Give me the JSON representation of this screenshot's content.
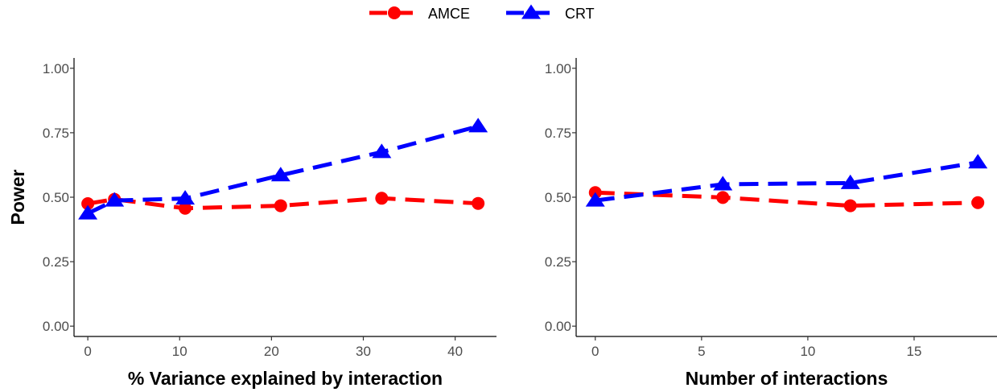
{
  "legend": {
    "items": [
      {
        "label": "AMCE",
        "color": "#ff0000",
        "marker": "circle"
      },
      {
        "label": "CRT",
        "color": "#0000ff",
        "marker": "triangle"
      }
    ]
  },
  "chart_data": [
    {
      "type": "line",
      "xlabel": "% Variance explained by interaction",
      "ylabel": "Power",
      "xlim": [
        -1.5,
        44.5
      ],
      "ylim": [
        -0.04,
        1.04
      ],
      "xticks": [
        0,
        10,
        20,
        30,
        40
      ],
      "yticks": [
        0.0,
        0.25,
        0.5,
        0.75,
        1.0
      ],
      "ytick_labels": [
        "0.00",
        "0.25",
        "0.50",
        "0.75",
        "1.00"
      ],
      "grid": false,
      "series": [
        {
          "name": "AMCE",
          "color": "#ff0000",
          "marker": "circle",
          "x": [
            0,
            2.9,
            10.6,
            21.0,
            32.0,
            42.5
          ],
          "y": [
            0.475,
            0.492,
            0.457,
            0.467,
            0.496,
            0.476
          ]
        },
        {
          "name": "CRT",
          "color": "#0000ff",
          "marker": "triangle",
          "x": [
            0,
            2.9,
            10.6,
            21.0,
            32.0,
            42.5
          ],
          "y": [
            0.437,
            0.487,
            0.495,
            0.585,
            0.675,
            0.775
          ]
        }
      ]
    },
    {
      "type": "line",
      "xlabel": "Number of interactions",
      "ylabel": "",
      "xlim": [
        -0.9,
        18.9
      ],
      "ylim": [
        -0.04,
        1.04
      ],
      "xticks": [
        0,
        5,
        10,
        15
      ],
      "yticks": [
        0.0,
        0.25,
        0.5,
        0.75,
        1.0
      ],
      "ytick_labels": [
        "0.00",
        "0.25",
        "0.50",
        "0.75",
        "1.00"
      ],
      "grid": false,
      "series": [
        {
          "name": "AMCE",
          "color": "#ff0000",
          "marker": "circle",
          "x": [
            0,
            6,
            12,
            18
          ],
          "y": [
            0.518,
            0.499,
            0.467,
            0.479
          ]
        },
        {
          "name": "CRT",
          "color": "#0000ff",
          "marker": "triangle",
          "x": [
            0,
            6,
            12,
            18
          ],
          "y": [
            0.487,
            0.55,
            0.555,
            0.635
          ]
        }
      ]
    }
  ]
}
